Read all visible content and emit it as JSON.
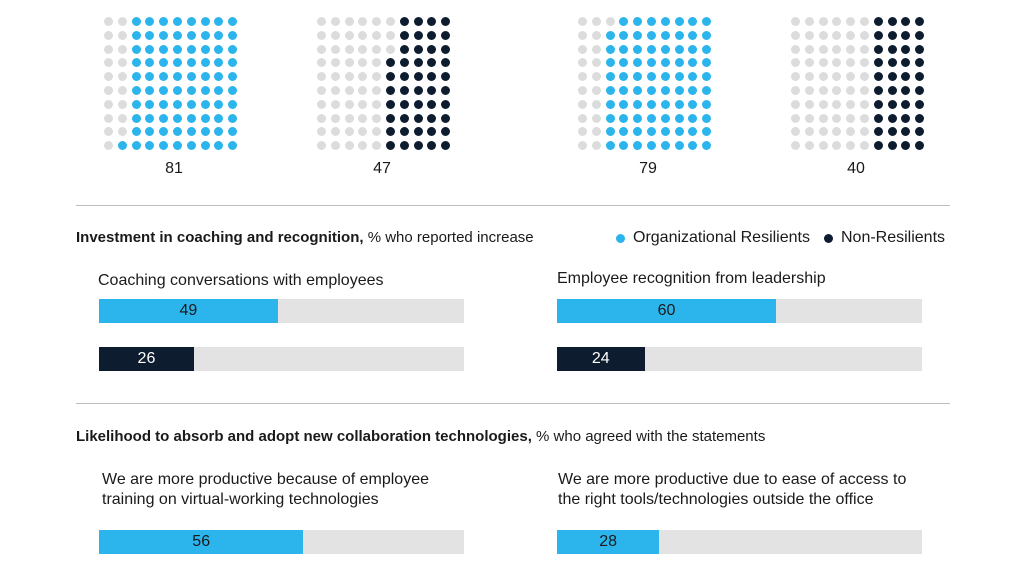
{
  "colors": {
    "resilient": "#2bb5ec",
    "non_resilient": "#0e1c2f",
    "empty_dot": "#dcdcdc",
    "track": "#e3e3e3",
    "on_fill_text_light": "#ffffff",
    "on_fill_text_dark": "#1a1a1a"
  },
  "legend": {
    "resilient_label": "Organizational Resilients",
    "non_resilient_label": "Non-Resilients"
  },
  "sections": {
    "coaching": {
      "title_bold": "Investment in coaching and recognition,",
      "title_rest": " % who reported increase"
    },
    "collab": {
      "title_bold": "Likelihood to absorb and adopt new collaboration technologies,",
      "title_rest": " % who agreed with the statements"
    }
  },
  "chart_data": [
    {
      "type": "waffle",
      "grid": [
        10,
        10
      ],
      "series": [
        {
          "group": "Organizational Resilients",
          "value": 81
        },
        {
          "group": "Non-Resilients",
          "value": 47
        },
        {
          "group": "Organizational Resilients",
          "value": 79
        },
        {
          "group": "Non-Resilients",
          "value": 40
        }
      ]
    },
    {
      "type": "bar",
      "title": "Coaching conversations with employees",
      "xlim": [
        0,
        100
      ],
      "series": [
        {
          "name": "Organizational Resilients",
          "value": 49
        },
        {
          "name": "Non-Resilients",
          "value": 26
        }
      ]
    },
    {
      "type": "bar",
      "title": "Employee recognition from leadership",
      "xlim": [
        0,
        100
      ],
      "series": [
        {
          "name": "Organizational Resilients",
          "value": 60
        },
        {
          "name": "Non-Resilients",
          "value": 24
        }
      ]
    },
    {
      "type": "bar",
      "title": "We are more productive because of employee\ntraining on virtual-working technologies",
      "xlim": [
        0,
        100
      ],
      "series": [
        {
          "name": "Organizational Resilients",
          "value": 56
        }
      ]
    },
    {
      "type": "bar",
      "title": "We are more productive due to ease of access to\nthe right tools/technologies outside the office",
      "xlim": [
        0,
        100
      ],
      "series": [
        {
          "name": "Organizational Resilients",
          "value": 28
        }
      ]
    }
  ]
}
